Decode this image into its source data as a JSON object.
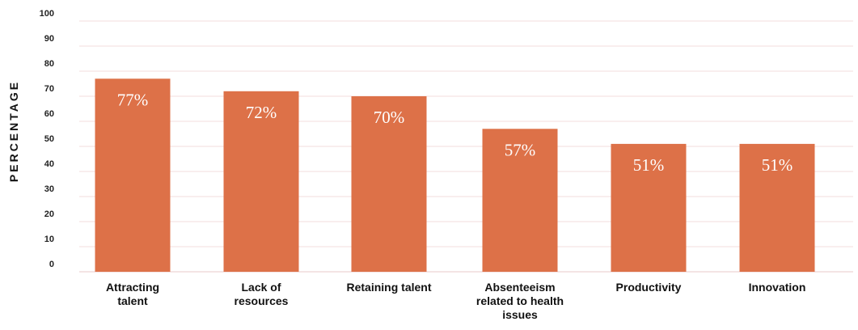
{
  "chart_data": {
    "type": "bar",
    "ylabel": "PERCENTAGE",
    "xlabel": "",
    "ylim": [
      0,
      100
    ],
    "yticks": [
      "100",
      "90",
      "80",
      "70",
      "60",
      "50",
      "40",
      "30",
      "20",
      "10",
      "0"
    ],
    "grid": true,
    "categories": [
      [
        "Attracting",
        "talent"
      ],
      [
        "Lack of",
        "resources"
      ],
      [
        "Retaining talent"
      ],
      [
        "Absenteeism",
        "related to health",
        "issues"
      ],
      [
        "Productivity"
      ],
      [
        "Innovation"
      ]
    ],
    "values": [
      77,
      72,
      70,
      57,
      51,
      51
    ],
    "data_labels": [
      "77%",
      "72%",
      "70%",
      "57%",
      "51%",
      "51%"
    ],
    "colors": {
      "bar": "#DD7148",
      "grid": "#F3DDDD",
      "baseline": "#E9C9C9"
    }
  }
}
